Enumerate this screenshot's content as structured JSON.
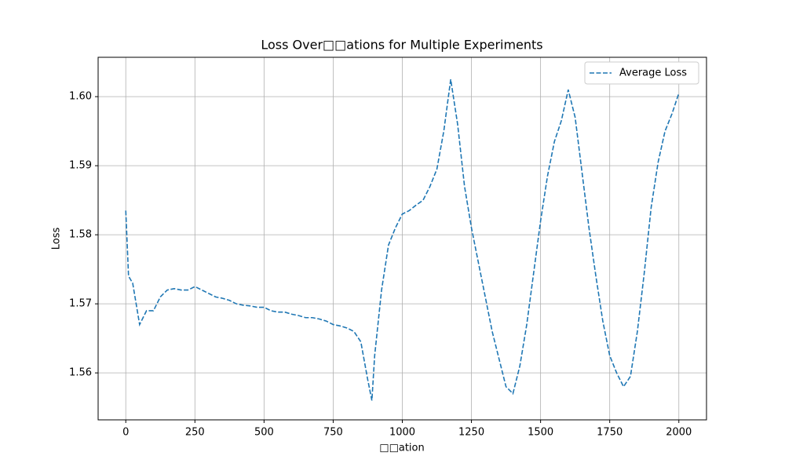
{
  "chart_data": {
    "type": "line",
    "title": "Loss Over□□ations for Multiple Experiments",
    "x_label": "□□ation",
    "y_label": "Loss",
    "x": [
      0,
      10,
      25,
      50,
      75,
      100,
      125,
      150,
      175,
      200,
      225,
      250,
      275,
      300,
      325,
      350,
      375,
      400,
      425,
      450,
      475,
      500,
      525,
      550,
      575,
      600,
      625,
      650,
      675,
      700,
      725,
      750,
      775,
      800,
      825,
      850,
      875,
      890,
      900,
      925,
      950,
      975,
      1000,
      1025,
      1050,
      1075,
      1100,
      1125,
      1150,
      1175,
      1200,
      1225,
      1250,
      1275,
      1300,
      1325,
      1350,
      1375,
      1400,
      1425,
      1450,
      1475,
      1500,
      1525,
      1550,
      1575,
      1600,
      1625,
      1650,
      1675,
      1700,
      1725,
      1750,
      1775,
      1800,
      1825,
      1850,
      1875,
      1900,
      1925,
      1950,
      1975,
      2000
    ],
    "series": [
      {
        "name": "Average Loss",
        "color": "#1f77b4",
        "values": [
          1.5835,
          1.574,
          1.573,
          1.567,
          1.569,
          1.569,
          1.571,
          1.572,
          1.5722,
          1.572,
          1.572,
          1.5725,
          1.572,
          1.5715,
          1.571,
          1.5708,
          1.5705,
          1.57,
          1.5698,
          1.5697,
          1.5695,
          1.5695,
          1.569,
          1.5688,
          1.5688,
          1.5685,
          1.5683,
          1.568,
          1.568,
          1.5678,
          1.5675,
          1.567,
          1.5668,
          1.5665,
          1.566,
          1.5645,
          1.559,
          1.556,
          1.5625,
          1.572,
          1.5785,
          1.581,
          1.583,
          1.5835,
          1.5843,
          1.585,
          1.587,
          1.5895,
          1.595,
          1.6025,
          1.596,
          1.587,
          1.581,
          1.576,
          1.571,
          1.566,
          1.562,
          1.558,
          1.557,
          1.561,
          1.567,
          1.5745,
          1.582,
          1.5885,
          1.5935,
          1.5965,
          1.601,
          1.597,
          1.589,
          1.581,
          1.574,
          1.5675,
          1.5625,
          1.56,
          1.558,
          1.5595,
          1.566,
          1.5745,
          1.584,
          1.5905,
          1.595,
          1.5975,
          1.6005
        ]
      }
    ],
    "xlim": [
      -100,
      2100
    ],
    "ylim": [
      1.5532,
      1.6057
    ],
    "xticks": [
      0,
      250,
      500,
      750,
      1000,
      1250,
      1500,
      1750,
      2000
    ],
    "yticks": [
      1.56,
      1.57,
      1.58,
      1.59,
      {
        "value": 1.6,
        "label": "1.60"
      }
    ],
    "grid": true,
    "legend": "upper right"
  }
}
